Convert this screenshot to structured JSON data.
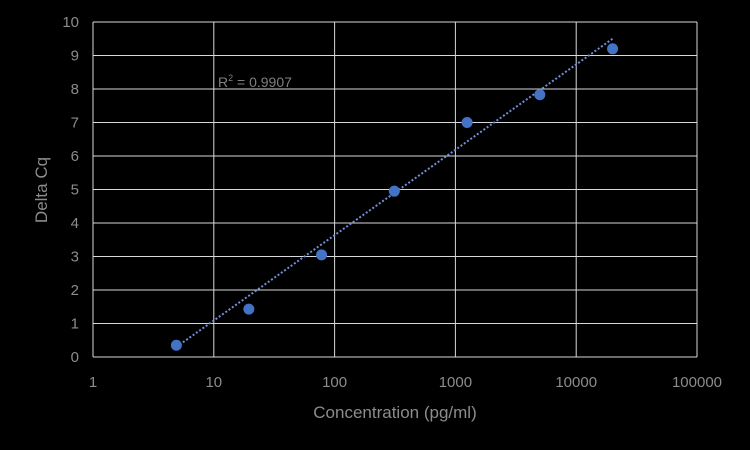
{
  "chart_data": {
    "type": "scatter",
    "xlabel": "Concentration (pg/ml)",
    "ylabel": "Delta Cq",
    "x_scale": "log",
    "xlim": [
      1,
      100000
    ],
    "ylim": [
      0,
      10
    ],
    "x_ticks": [
      "1",
      "10",
      "100",
      "1000",
      "10000",
      "100000"
    ],
    "y_ticks": [
      "0",
      "1",
      "2",
      "3",
      "4",
      "5",
      "6",
      "7",
      "8",
      "9",
      "10"
    ],
    "grid": true,
    "points": [
      {
        "x": 4.9,
        "y": 0.35
      },
      {
        "x": 19.5,
        "y": 1.43
      },
      {
        "x": 78,
        "y": 3.05
      },
      {
        "x": 312,
        "y": 4.95
      },
      {
        "x": 1250,
        "y": 7.0
      },
      {
        "x": 5000,
        "y": 7.83
      },
      {
        "x": 20000,
        "y": 9.2
      }
    ],
    "trendline": {
      "style": "dotted",
      "x": [
        4.9,
        20000
      ],
      "y": [
        0.3,
        9.5
      ]
    },
    "annotation": {
      "base": "R",
      "sup": "2",
      "rest": " = 0.9907"
    },
    "colors": {
      "point": "#4472c4",
      "trend": "#6f8fd6",
      "grid": "#d9d9d9",
      "text": "#8c8c8c"
    }
  }
}
